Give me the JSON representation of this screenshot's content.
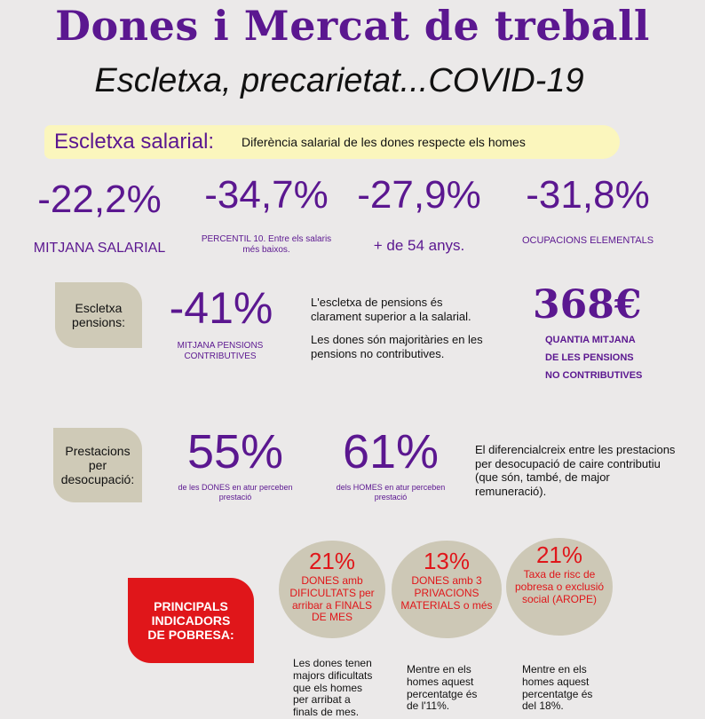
{
  "header": {
    "title": "Dones i Mercat de treball",
    "subtitle": "Escletxa, precarietat...COVID-19"
  },
  "salary_gap": {
    "label": "Escletxa salarial:",
    "description": "Diferència salarial de les dones respecte els homes",
    "stats": [
      {
        "value": "-22,2%",
        "caption": "MITJANA SALARIAL"
      },
      {
        "value": "-34,7%",
        "caption": "PERCENTIL 10. Entre els salaris més baixos."
      },
      {
        "value": "-27,9%",
        "caption": "+ de 54 anys."
      },
      {
        "value": "-31,8%",
        "caption": "OCUPACIONS ELEMENTALS"
      }
    ]
  },
  "pensions": {
    "label": "Escletxa pensions:",
    "value": "-41%",
    "caption": "MITJANA PENSIONS CONTRIBUTIVES",
    "text1": "L'escletxa de pensions és clarament superior a la salarial.",
    "text2": "Les dones són majoritàries en les pensions no contributives.",
    "amount": "368€",
    "amount_caption_1": "QUANTIA MITJANA",
    "amount_caption_2": "DE LES PENSIONS",
    "amount_caption_3": "NO CONTRIBUTIVES"
  },
  "unemployment": {
    "label": "Prestacions per desocupació:",
    "women_value": "55%",
    "women_caption": "de les DONES en atur perceben prestació",
    "men_value": "61%",
    "men_caption": "dels HOMES en atur perceben prestació",
    "text": "El diferencialcreix entre les prestacions per desocupació de caire contributiu (que són, també, de major remuneració)."
  },
  "poverty": {
    "label": "PRINCIPALS INDICADORS DE POBRESA:",
    "indicators": [
      {
        "value": "21%",
        "text": "DONES  amb DIFICULTATS per arribar a FINALS DE MES",
        "note": "Les dones tenen majors dificultats que els homes per arribat a finals de mes."
      },
      {
        "value": "13%",
        "text": "DONES  amb 3 PRIVACIONS MATERIALS o més",
        "note": "Mentre en els homes aquest percentatge és de l'11%."
      },
      {
        "value": "21%",
        "text": "Taxa de risc de pobresa o exclusió social (AROPE)",
        "note": "Mentre en els homes aquest percentatge és del 18%."
      }
    ]
  },
  "colors": {
    "accent_purple": "#5b1790",
    "accent_red": "#e0161a",
    "highlight_yellow": "#fbf6bd",
    "pill_beige": "#cfcab7"
  }
}
